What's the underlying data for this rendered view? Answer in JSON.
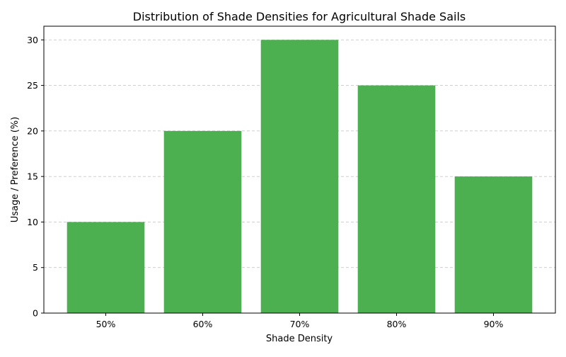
{
  "chart_data": {
    "type": "bar",
    "title": "Distribution of Shade Densities for Agricultural Shade Sails",
    "xlabel": "Shade Density",
    "ylabel": "Usage / Preference (%)",
    "categories": [
      "50%",
      "60%",
      "70%",
      "80%",
      "90%"
    ],
    "values": [
      10,
      20,
      30,
      25,
      15
    ],
    "ylim": [
      0,
      31.5
    ],
    "yticks": [
      0,
      5,
      10,
      15,
      20,
      25,
      30
    ],
    "bar_color": "#4caf50",
    "grid": true,
    "grid_axis": "y",
    "legend": "none"
  }
}
